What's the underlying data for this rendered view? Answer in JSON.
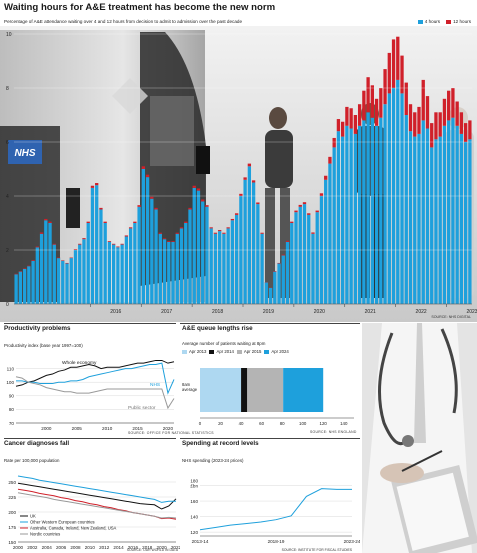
{
  "header": {
    "title": "Waiting hours for A&E treatment has become the new norm",
    "subtitle": "Percentage of A&E attendance waiting over 4 and 12 hours from decision to admit to admission over the past decade",
    "source": "SOURCE: NHS DIGITAL"
  },
  "colors": {
    "blue": "#1ea0dc",
    "red": "#d0202a",
    "pale_blue": "#aed8f1",
    "grey": "#b4b4b4",
    "black": "#111111"
  },
  "photo_text": {
    "ambulance_logo": "NHS"
  },
  "chart_data": [
    {
      "id": "main",
      "type": "bar",
      "stacked": true,
      "ylim": [
        0,
        10
      ],
      "yticks": [
        0,
        2,
        4,
        6,
        8,
        10
      ],
      "xticks": [
        "2016",
        "2017",
        "2018",
        "2019",
        "2020",
        "2021",
        "2022",
        "2023"
      ],
      "x_start": "2015-04",
      "x_end": "2024-03",
      "legend": [
        "4 hours",
        "12 hours"
      ],
      "series": [
        {
          "name": "4 hours",
          "values": [
            1.1,
            1.2,
            1.3,
            1.4,
            1.6,
            2.1,
            2.6,
            3.1,
            3.0,
            2.2,
            1.7,
            1.6,
            1.5,
            1.7,
            2.0,
            2.2,
            2.4,
            3.0,
            4.3,
            4.4,
            3.5,
            3.0,
            2.3,
            2.2,
            2.1,
            2.2,
            2.5,
            2.8,
            3.0,
            3.6,
            5.0,
            4.7,
            3.9,
            3.5,
            2.6,
            2.4,
            2.3,
            2.3,
            2.6,
            2.8,
            3.0,
            3.5,
            4.3,
            4.2,
            3.8,
            3.6,
            2.8,
            2.6,
            2.7,
            2.6,
            2.8,
            3.1,
            3.3,
            4.0,
            4.6,
            5.1,
            4.5,
            3.7,
            2.6,
            0.8,
            0.6,
            1.2,
            1.5,
            1.8,
            2.3,
            3.0,
            3.4,
            3.6,
            3.7,
            3.3,
            2.6,
            3.4,
            4.0,
            4.6,
            5.2,
            5.8,
            6.4,
            6.2,
            6.6,
            6.5,
            6.3,
            6.6,
            6.8,
            7.1,
            6.9,
            6.6,
            6.9,
            7.4,
            7.8,
            8.0,
            8.3,
            7.8,
            7.0,
            6.4,
            6.2,
            6.3,
            6.8,
            6.5,
            5.8,
            6.1,
            6.2,
            6.6,
            6.8,
            6.9,
            6.6,
            6.3,
            6.0,
            6.1
          ]
        },
        {
          "name": "12 hours",
          "values": [
            0.02,
            0.02,
            0.02,
            0.02,
            0.03,
            0.03,
            0.05,
            0.05,
            0.05,
            0.03,
            0.02,
            0.02,
            0.02,
            0.02,
            0.03,
            0.03,
            0.04,
            0.05,
            0.08,
            0.08,
            0.06,
            0.05,
            0.03,
            0.03,
            0.03,
            0.03,
            0.04,
            0.04,
            0.05,
            0.06,
            0.1,
            0.09,
            0.07,
            0.06,
            0.04,
            0.03,
            0.03,
            0.03,
            0.04,
            0.04,
            0.05,
            0.06,
            0.08,
            0.08,
            0.07,
            0.06,
            0.04,
            0.04,
            0.04,
            0.04,
            0.04,
            0.05,
            0.06,
            0.08,
            0.09,
            0.1,
            0.08,
            0.06,
            0.04,
            0.01,
            0.01,
            0.02,
            0.02,
            0.03,
            0.04,
            0.05,
            0.06,
            0.07,
            0.07,
            0.06,
            0.05,
            0.06,
            0.1,
            0.15,
            0.25,
            0.35,
            0.45,
            0.55,
            0.7,
            0.75,
            0.7,
            0.8,
            1.1,
            1.3,
            1.2,
            1.0,
            1.1,
            1.3,
            1.5,
            1.8,
            1.6,
            1.4,
            1.2,
            1.0,
            0.9,
            1.0,
            1.5,
            1.2,
            0.9,
            1.0,
            0.9,
            1.0,
            1.1,
            1.1,
            0.9,
            0.8,
            0.7,
            0.7
          ]
        }
      ]
    },
    {
      "id": "productivity",
      "title": "Productivity problems",
      "subtitle": "Productivity index (base year 1997=100)",
      "type": "line",
      "x": [
        1995,
        1996,
        1997,
        1998,
        1999,
        2000,
        2001,
        2002,
        2003,
        2004,
        2005,
        2006,
        2007,
        2008,
        2009,
        2010,
        2011,
        2012,
        2013,
        2014,
        2015,
        2016,
        2017,
        2018,
        2019,
        2020,
        2021
      ],
      "ylim": [
        70,
        120
      ],
      "yticks": [
        70,
        80,
        90,
        100,
        110
      ],
      "xticks": [
        "2000",
        "2005",
        "2010",
        "2015",
        "2020"
      ],
      "annotations": [
        "Whole economy",
        "NHS",
        "Public sector"
      ],
      "series": [
        {
          "name": "Whole economy",
          "color": "#111111",
          "values": [
            97,
            98,
            100,
            101,
            103,
            105,
            106,
            108,
            109,
            111,
            111,
            112,
            113,
            112,
            110,
            111,
            111,
            111,
            112,
            113,
            114,
            114,
            115,
            116,
            116,
            114,
            115
          ]
        },
        {
          "name": "NHS",
          "color": "#1ea0dc",
          "values": [
            101,
            101,
            100,
            100,
            99,
            99,
            99,
            100,
            100,
            101,
            101,
            102,
            104,
            105,
            106,
            107,
            108,
            109,
            110,
            110,
            111,
            112,
            113,
            113,
            114,
            92,
            102
          ]
        },
        {
          "name": "Public sector",
          "color": "#999999",
          "values": [
            104,
            103,
            100,
            99,
            98,
            96,
            95,
            94,
            93,
            93,
            92,
            92,
            92,
            93,
            94,
            95,
            95,
            95,
            95,
            95,
            95,
            95,
            95,
            95,
            95,
            81,
            88
          ]
        }
      ],
      "source": "SOURCE: OFFICE FOR NATIONAL STATISTICS"
    },
    {
      "id": "queue",
      "title": "A&E queue lengths rise",
      "subtitle": "Average number of patients waiting at 8pm",
      "type": "bar",
      "stacked": true,
      "categories": [
        "8am average"
      ],
      "legend": [
        "Apr 2013",
        "Apr 2014",
        "Apr 2015",
        "Apr 2024"
      ],
      "series": [
        {
          "name": "Apr 2013",
          "values": [
            40
          ]
        },
        {
          "name": "Apr 2014",
          "values": [
            6
          ]
        },
        {
          "name": "Apr 2015",
          "values": [
            35
          ]
        },
        {
          "name": "Apr 2024",
          "values": [
            39
          ]
        }
      ],
      "xlim": [
        0,
        150
      ],
      "xticks": [
        0,
        20,
        40,
        60,
        80,
        100,
        120,
        140
      ],
      "source": "SOURCE: NHS ENGLAND"
    },
    {
      "id": "cancer",
      "title": "Cancer diagnoses fall",
      "subtitle": "Rate per 100,000 population",
      "type": "line",
      "x": [
        2000,
        2001,
        2002,
        2003,
        2004,
        2005,
        2006,
        2007,
        2008,
        2009,
        2010,
        2011,
        2012,
        2013,
        2014,
        2015,
        2016,
        2017,
        2018,
        2019,
        2020,
        2021,
        2022
      ],
      "ylim": [
        150,
        270
      ],
      "yticks": [
        150,
        175,
        200,
        225,
        250
      ],
      "xticks": [
        "2000",
        "2002",
        "2004",
        "2006",
        "2008",
        "2010",
        "2012",
        "2014",
        "2016",
        "2018",
        "2020",
        "2022"
      ],
      "series": [
        {
          "name": "UK",
          "color": "#111111",
          "values": [
            248,
            246,
            244,
            242,
            240,
            238,
            236,
            234,
            232,
            230,
            228,
            226,
            224,
            222,
            220,
            218,
            216,
            214,
            213,
            212,
            205,
            210,
            222
          ]
        },
        {
          "name": "Other Western European countries",
          "color": "#1ea0dc",
          "values": [
            260,
            258,
            256,
            253,
            251,
            249,
            247,
            245,
            243,
            241,
            239,
            237,
            235,
            233,
            231,
            229,
            227,
            225,
            223,
            221,
            216,
            218,
            218
          ]
        },
        {
          "name": "Australia, Canada, Ireland, New Zealand, USA",
          "color": "#d0202a",
          "values": [
            238,
            236,
            234,
            231,
            229,
            227,
            224,
            222,
            219,
            217,
            214,
            212,
            209,
            207,
            204,
            202,
            199,
            197,
            195,
            193,
            189,
            190,
            188
          ]
        },
        {
          "name": "Nordic countries",
          "color": "#999999",
          "values": [
            232,
            230,
            228,
            226,
            224,
            221,
            219,
            217,
            215,
            213,
            211,
            209,
            207,
            205,
            203,
            201,
            199,
            197,
            195,
            193,
            190,
            191,
            190
          ]
        }
      ],
      "source": "SOURCE: OUR WORLD IN DATA"
    },
    {
      "id": "spending",
      "title": "Spending at record levels",
      "subtitle": "NHS spending (2023-24 prices)",
      "type": "line",
      "x": [
        "2013-14",
        "2014-15",
        "2015-16",
        "2016-17",
        "2017-18",
        "2018-19",
        "2019-20",
        "2020-21",
        "2021-22",
        "2022-23",
        "2023-24"
      ],
      "ylim": [
        115,
        200
      ],
      "yticks": [
        120,
        140,
        160,
        180
      ],
      "ytick_labels": [
        "120",
        "140",
        "160",
        "180\n£bn"
      ],
      "xticks": [
        "2013-14",
        "2018-19",
        "2023-24"
      ],
      "series": [
        {
          "name": "NHS spending",
          "color": "#1ea0dc",
          "values": [
            123,
            126,
            129,
            131,
            133,
            136,
            141,
            166,
            176,
            175,
            175
          ]
        }
      ],
      "source": "SOURCE: INSTITUTE FOR FISCAL STUDIES"
    }
  ]
}
